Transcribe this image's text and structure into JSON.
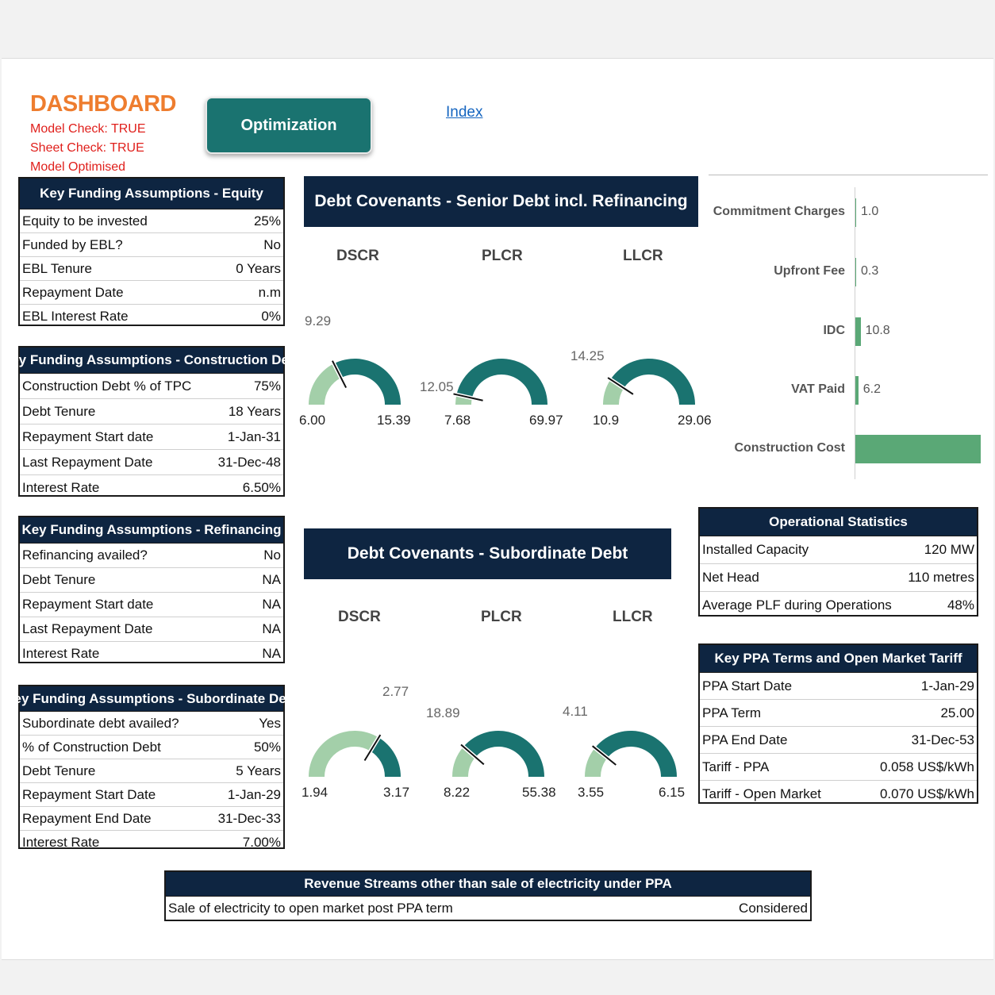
{
  "header": {
    "title": "DASHBOARD",
    "checks": [
      "Model Check: TRUE",
      "Sheet Check: TRUE",
      "Model Optimised"
    ],
    "optimization_button": "Optimization",
    "index_link": "Index"
  },
  "equity": {
    "title": "Key Funding Assumptions - Equity",
    "rows": [
      {
        "label": "Equity to be invested",
        "value": "25%"
      },
      {
        "label": "Funded by EBL?",
        "value": "No"
      },
      {
        "label": "EBL Tenure",
        "value": "0 Years"
      },
      {
        "label": "Repayment Date",
        "value": "n.m"
      },
      {
        "label": "EBL Interest Rate",
        "value": "0%"
      }
    ]
  },
  "construction": {
    "title": "Key Funding Assumptions - Construction Debt",
    "rows": [
      {
        "label": "Construction Debt % of TPC",
        "value": "75%"
      },
      {
        "label": "Debt Tenure",
        "value": "18 Years"
      },
      {
        "label": "Repayment Start date",
        "value": "1-Jan-31"
      },
      {
        "label": "Last Repayment Date",
        "value": "31-Dec-48"
      },
      {
        "label": "Interest Rate",
        "value": "6.50%"
      }
    ]
  },
  "refinancing": {
    "title": "Key Funding Assumptions - Refinancing",
    "rows": [
      {
        "label": "Refinancing availed?",
        "value": "No"
      },
      {
        "label": "Debt Tenure",
        "value": "NA"
      },
      {
        "label": "Repayment Start date",
        "value": "NA"
      },
      {
        "label": "Last Repayment Date",
        "value": "NA"
      },
      {
        "label": "Interest Rate",
        "value": "NA"
      }
    ]
  },
  "subordinate": {
    "title": "Key Funding Assumptions - Subordinate Debt",
    "rows": [
      {
        "label": "Subordinate debt availed?",
        "value": "Yes"
      },
      {
        "label": "% of Construction Debt",
        "value": "50%"
      },
      {
        "label": "Debt Tenure",
        "value": "5 Years"
      },
      {
        "label": "Repayment Start Date",
        "value": "1-Jan-29"
      },
      {
        "label": "Repayment End Date",
        "value": "31-Dec-33"
      },
      {
        "label": "Interest Rate",
        "value": "7.00%"
      }
    ]
  },
  "senior_covenants": {
    "title": "Debt Covenants - Senior Debt incl. Refinancing",
    "gauges": [
      {
        "name": "DSCR",
        "min": "6.00",
        "max": "15.39",
        "value": "9.29",
        "min_n": 6.0,
        "max_n": 15.39,
        "value_n": 9.29
      },
      {
        "name": "PLCR",
        "min": "7.68",
        "max": "69.97",
        "value": "12.05",
        "min_n": 7.68,
        "max_n": 69.97,
        "value_n": 12.05
      },
      {
        "name": "LLCR",
        "min": "10.9",
        "max": "29.06",
        "value": "14.25",
        "min_n": 10.9,
        "max_n": 29.06,
        "value_n": 14.25
      }
    ]
  },
  "sub_covenants": {
    "title": "Debt Covenants - Subordinate Debt",
    "gauges": [
      {
        "name": "DSCR",
        "min": "1.94",
        "max": "3.17",
        "value": "2.77",
        "min_n": 1.94,
        "max_n": 3.17,
        "value_n": 2.77
      },
      {
        "name": "PLCR",
        "min": "8.22",
        "max": "55.38",
        "value": "18.89",
        "min_n": 8.22,
        "max_n": 55.38,
        "value_n": 18.89
      },
      {
        "name": "LLCR",
        "min": "3.55",
        "max": "6.15",
        "value": "4.11",
        "min_n": 3.55,
        "max_n": 6.15,
        "value_n": 4.11
      }
    ]
  },
  "colors": {
    "gauge_dark": "#1a7370",
    "gauge_light": "#a3cfa9",
    "bar": "#5aa876",
    "navy": "#0e2541"
  },
  "chart_data": {
    "type": "bar",
    "orientation": "horizontal",
    "categories": [
      "Commitment Charges",
      "Upfront Fee",
      "IDC",
      "VAT Paid",
      "Construction Cost"
    ],
    "values": [
      1.0,
      0.3,
      10.8,
      6.2,
      260
    ],
    "value_labels": [
      "1.0",
      "0.3",
      "10.8",
      "6.2",
      ""
    ]
  },
  "operational": {
    "title": "Operational Statistics",
    "rows": [
      {
        "label": "Installed Capacity",
        "value": "120 MW"
      },
      {
        "label": "Net Head",
        "value": "110 metres"
      },
      {
        "label": "Average PLF during Operations",
        "value": "48%"
      }
    ]
  },
  "ppa": {
    "title": "Key PPA Terms and Open Market Tariff",
    "rows": [
      {
        "label": "PPA Start Date",
        "value": "1-Jan-29"
      },
      {
        "label": "PPA Term",
        "value": "25.00"
      },
      {
        "label": "PPA End Date",
        "value": "31-Dec-53"
      },
      {
        "label": "Tariff - PPA",
        "value": "0.058 US$/kWh"
      },
      {
        "label": "Tariff - Open Market",
        "value": "0.070 US$/kWh"
      }
    ]
  },
  "revenue": {
    "title": "Revenue Streams other than sale of electricity under PPA",
    "rows": [
      {
        "label": "Sale of electricity to open market post PPA term",
        "value": "Considered"
      }
    ]
  }
}
